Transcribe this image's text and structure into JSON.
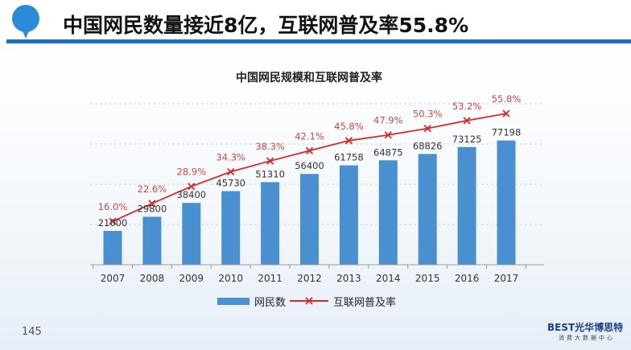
{
  "slide": {
    "title": "中国网民数量接近8亿，互联网普及率55.8%",
    "page_number": "145",
    "logo": {
      "brand": "BEST光华博思特",
      "subtitle": "消费大数据中心"
    },
    "accent_color": "#1f6fc0"
  },
  "chart_data": {
    "type": "bar+line",
    "title": "中国网民规模和互联网普及率",
    "categories": [
      "2007",
      "2008",
      "2009",
      "2010",
      "2011",
      "2012",
      "2013",
      "2014",
      "2015",
      "2016",
      "2017"
    ],
    "series": [
      {
        "name": "网民数",
        "type": "bar",
        "color": "#4a90d0",
        "axis": "left",
        "values": [
          21000,
          29800,
          38400,
          45730,
          51310,
          56400,
          61758,
          64875,
          68826,
          73125,
          77198
        ],
        "labels": [
          "21000",
          "29800",
          "38400",
          "45730",
          "51310",
          "56400",
          "61758",
          "64875",
          "68826",
          "73125",
          "77198"
        ]
      },
      {
        "name": "互联网普及率",
        "type": "line",
        "color": "#d42a2a",
        "marker": "x",
        "axis": "right",
        "values": [
          16.0,
          22.6,
          28.9,
          34.3,
          38.3,
          42.1,
          45.8,
          47.9,
          50.3,
          53.2,
          55.8
        ],
        "labels": [
          "16.0%",
          "22.6%",
          "28.9%",
          "34.3%",
          "38.3%",
          "42.1%",
          "45.8%",
          "47.9%",
          "50.3%",
          "53.2%",
          "55.8%"
        ]
      }
    ],
    "ylim_left": [
      0,
      100000
    ],
    "ylim_right": [
      0,
      60
    ],
    "grid": true,
    "legend": "bottom"
  }
}
